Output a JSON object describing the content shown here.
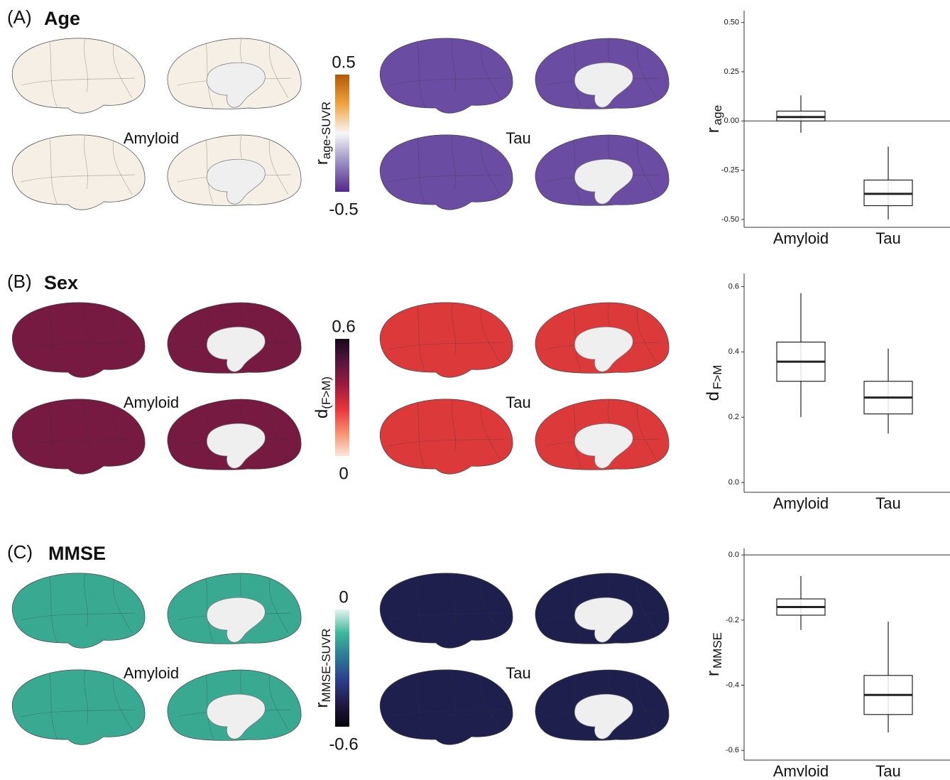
{
  "panels": [
    {
      "label": "(A)",
      "title": "Age",
      "maps": [
        "Amyloid",
        "Tau"
      ],
      "colorbar": {
        "label": "r",
        "label_sub": "age-SUVR",
        "lim": [
          -0.5,
          0.5
        ],
        "ticks": [
          0.5,
          -0.5
        ],
        "colors": [
          "#b35806",
          "#f1a340",
          "#f7f7f7",
          "#998ec3",
          "#542788"
        ]
      }
    },
    {
      "label": "(B)",
      "title": "Sex",
      "maps": [
        "Amyloid",
        "Tau"
      ],
      "colorbar": {
        "label": "d",
        "label_sub": "(F>M)",
        "lim": [
          0,
          0.6
        ],
        "ticks": [
          0.6,
          0
        ],
        "colors": [
          "#140a18",
          "#5a1540",
          "#9e1b3f",
          "#e8353b",
          "#f7906d",
          "#fde6d8"
        ]
      }
    },
    {
      "label": "(C)",
      "title": "MMSE",
      "maps": [
        "Amyloid",
        "Tau"
      ],
      "colorbar": {
        "label": "r",
        "label_sub": "MMSE-SUVR",
        "lim": [
          -0.6,
          0
        ],
        "ticks": [
          0,
          -0.6
        ],
        "colors": [
          "#e3f4ec",
          "#3db89b",
          "#2d7a96",
          "#2b3f8c",
          "#221a45",
          "#050308"
        ]
      }
    }
  ],
  "chart_data": [
    {
      "type": "box",
      "ylabel": "r",
      "ylabel_sub": "age",
      "categories": [
        "Amyloid",
        "Tau"
      ],
      "boxes": [
        {
          "min": -0.06,
          "q1": 0.0,
          "median": 0.02,
          "q3": 0.05,
          "max": 0.13
        },
        {
          "min": -0.5,
          "q1": -0.43,
          "median": -0.37,
          "q3": -0.3,
          "max": -0.13
        }
      ],
      "hline": 0,
      "ylim": [
        -0.54,
        0.56
      ],
      "yticks": [
        {
          "value": 0.5,
          "label": "0.50"
        },
        {
          "value": 0.25,
          "label": "0.25"
        },
        {
          "value": 0,
          "label": "0.00"
        },
        {
          "value": -0.25,
          "label": "-0.25"
        },
        {
          "value": -0.5,
          "label": "-0.50"
        }
      ]
    },
    {
      "type": "box",
      "ylabel": "d",
      "ylabel_sub": "F>M",
      "categories": [
        "Amyloid",
        "Tau"
      ],
      "boxes": [
        {
          "min": 0.2,
          "q1": 0.31,
          "median": 0.37,
          "q3": 0.43,
          "max": 0.58
        },
        {
          "min": 0.15,
          "q1": 0.21,
          "median": 0.26,
          "q3": 0.31,
          "max": 0.41
        }
      ],
      "ylim": [
        -0.03,
        0.64
      ],
      "yticks": [
        0.6,
        0.4,
        0.2,
        {
          "value": 0,
          "label": "0.0"
        }
      ]
    },
    {
      "type": "box",
      "ylabel": "r",
      "ylabel_sub": "MMSE",
      "categories": [
        "Amyloid",
        "Tau"
      ],
      "boxes": [
        {
          "min": -0.23,
          "q1": -0.185,
          "median": -0.16,
          "q3": -0.135,
          "max": -0.065
        },
        {
          "min": -0.545,
          "q1": -0.49,
          "median": -0.43,
          "q3": -0.37,
          "max": -0.205
        }
      ],
      "hline": 0,
      "ylim": [
        -0.63,
        0.02
      ],
      "yticks": [
        {
          "value": 0,
          "label": "0.0"
        },
        -0.2,
        -0.4,
        -0.6
      ]
    }
  ]
}
